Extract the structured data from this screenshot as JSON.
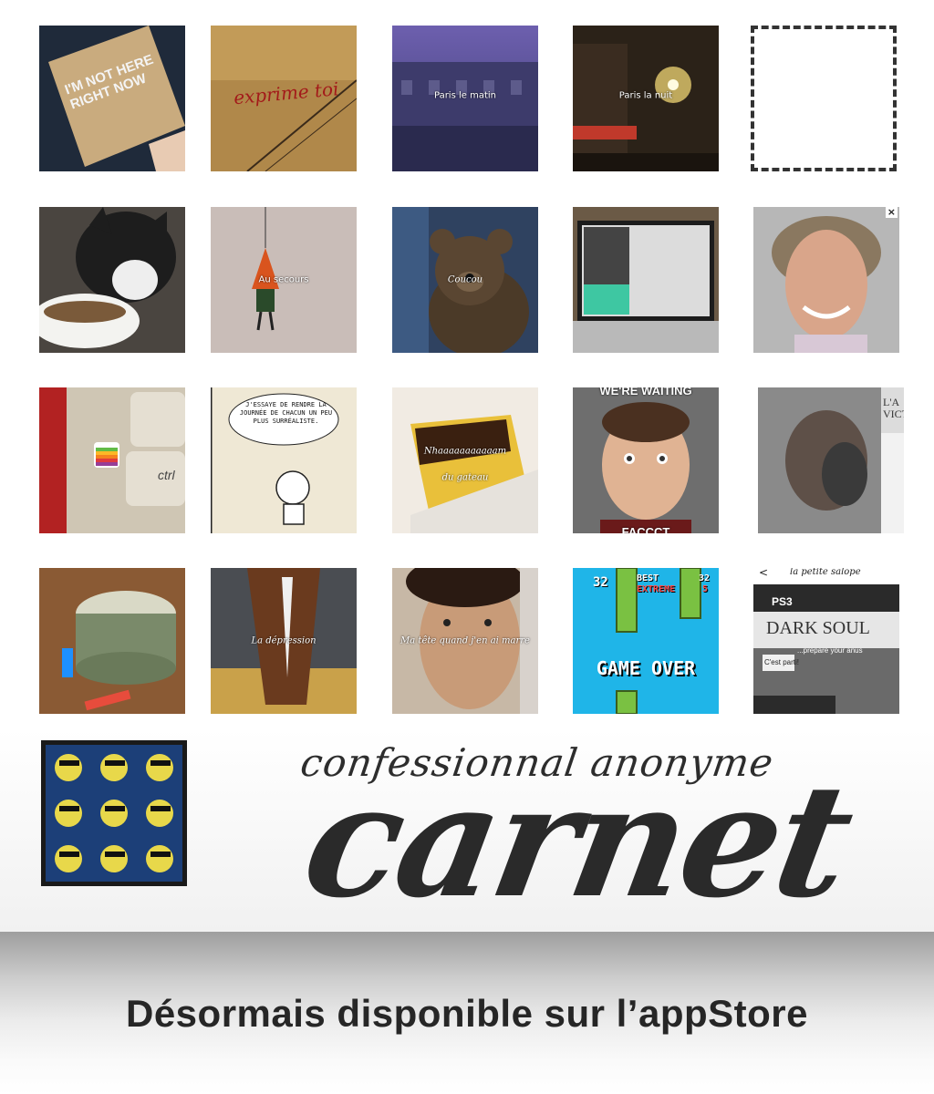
{
  "tiles": [
    {
      "name": "im-not-here-photo",
      "text": "I'M NOT HERE RIGHT NOW"
    },
    {
      "name": "exprime-toi-photo",
      "text": "exprime toi"
    },
    {
      "name": "paris-le-matin-photo",
      "caption": "Paris le matin"
    },
    {
      "name": "paris-la-nuit-photo",
      "caption": "Paris la nuit"
    },
    {
      "name": "cat-photo"
    },
    {
      "name": "au-secours-photo",
      "caption": "Au secours"
    },
    {
      "name": "coucou-photo",
      "caption": "Coucou"
    },
    {
      "name": "laptop-photo"
    },
    {
      "name": "portrait-photo",
      "close": "×"
    },
    {
      "name": "apple-keyboard-photo",
      "key": "ctrl"
    },
    {
      "name": "comic-photo",
      "text": "J'ESSAYE DE RENDRE LA JOURNÉE DE CHACUN UN PEU PLUS SURRÉALISTE."
    },
    {
      "name": "gateau-photo",
      "caption": "Nhaaaaaaaaaaam",
      "caption2": "du gateau"
    },
    {
      "name": "meme-photo",
      "text": "WE'RE WAITING",
      "text2": "FACCCT"
    },
    {
      "name": "newspaper-photo",
      "text": "L'A VICT"
    },
    {
      "name": "money-roll-photo"
    },
    {
      "name": "horse-photo",
      "caption": "La dépression"
    },
    {
      "name": "selfie-photo",
      "caption": "Ma tête quand j'en ai marre"
    },
    {
      "name": "flappy-bird-photo",
      "score": "32",
      "best": "BEST",
      "extreme": "EXTREME",
      "best_score": "32",
      "rank": "5",
      "game_over": "GAME OVER"
    },
    {
      "name": "dark-souls-photo",
      "back": "<",
      "title": "la petite salope",
      "ps3": "PS3",
      "game": "DARK SOUL",
      "button": "C'est parti!",
      "line": "...prepare your anus"
    },
    {
      "name": "pop-art-photo"
    }
  ],
  "brand": {
    "subtitle": "confessionnal anonyme",
    "title": "carnet"
  },
  "footer": {
    "text": "Désormais disponible sur l’appStore"
  }
}
